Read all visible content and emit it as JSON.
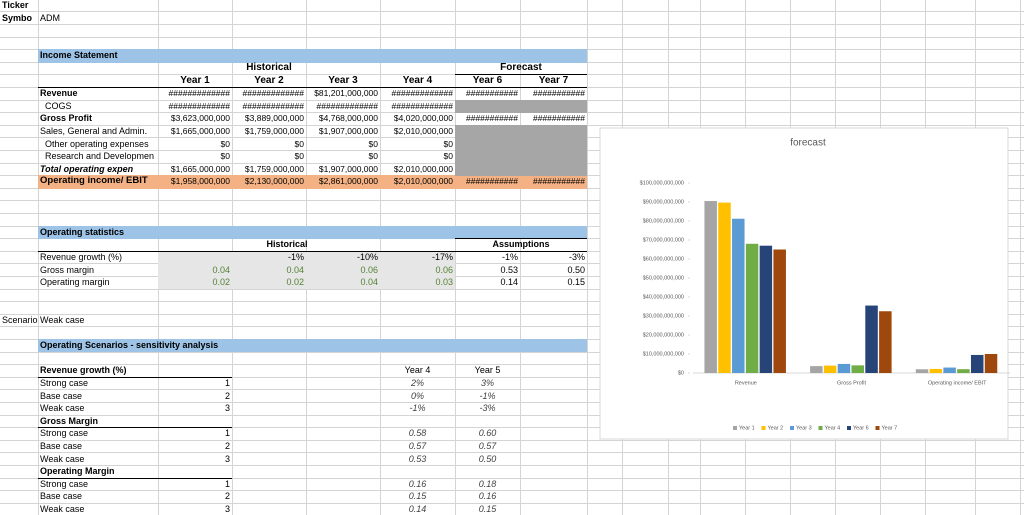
{
  "ticker": {
    "label": "Ticker",
    "symbol_label": "Symbo",
    "symbol": "ADM"
  },
  "income_statement": {
    "title": "Income Statement",
    "historical": "Historical",
    "forecast": "Forecast",
    "years": [
      "Year 1",
      "Year 2",
      "Year 3",
      "Year 4",
      "Year 6",
      "Year 7"
    ],
    "rows": [
      {
        "label": "Revenue",
        "values": [
          "#############",
          "#############",
          "$81,201,000,000",
          "#############",
          "###########",
          "###########"
        ]
      },
      {
        "label": "COGS",
        "values": [
          "#############",
          "#############",
          "#############",
          "#############"
        ]
      },
      {
        "label": "Gross Profit",
        "values": [
          "$3,623,000,000",
          "$3,889,000,000",
          "$4,768,000,000",
          "$4,020,000,000",
          "###########",
          "###########"
        ]
      },
      {
        "label": "Sales, General and Admin.",
        "values": [
          "$1,665,000,000",
          "$1,759,000,000",
          "$1,907,000,000",
          "$2,010,000,000"
        ]
      },
      {
        "label": "Other operating expenses",
        "values": [
          "$0",
          "$0",
          "$0",
          "$0"
        ]
      },
      {
        "label": "Research and Developmen",
        "values": [
          "$0",
          "$0",
          "$0",
          "$0"
        ]
      },
      {
        "label": "Total operating expen",
        "values": [
          "$1,665,000,000",
          "$1,759,000,000",
          "$1,907,000,000",
          "$2,010,000,000"
        ]
      },
      {
        "label": "Operating income/ EBIT",
        "values": [
          "$1,958,000,000",
          "$2,130,000,000",
          "$2,861,000,000",
          "$2,010,000,000",
          "###########",
          "###########"
        ]
      }
    ]
  },
  "operating_statistics": {
    "title": "Operating statistics",
    "historical": "Historical",
    "assumptions": "Assumptions",
    "rows": [
      {
        "label": "Revenue growth (%)",
        "values": [
          "-1%",
          "-10%",
          "-17%",
          "-1%",
          "-3%"
        ]
      },
      {
        "label": "Gross margin",
        "values": [
          "0.04",
          "0.04",
          "0.06",
          "0.06",
          "0.53",
          "0.50"
        ]
      },
      {
        "label": "Operating margin",
        "values": [
          "0.02",
          "0.02",
          "0.04",
          "0.03",
          "0.14",
          "0.15"
        ]
      }
    ]
  },
  "scenario": {
    "label": "Scenario",
    "value": "Weak case"
  },
  "scenarios": {
    "title": "Operating Scenarios - sensitivity analysis",
    "years": [
      "Year 4",
      "Year 5"
    ],
    "groups": [
      {
        "label": "Revenue growth (%)",
        "rows": [
          {
            "label": "Strong case",
            "id": 1,
            "values": [
              "2%",
              "3%"
            ]
          },
          {
            "label": "Base case",
            "id": 2,
            "values": [
              "0%",
              "-1%"
            ]
          },
          {
            "label": "Weak case",
            "id": 3,
            "values": [
              "-1%",
              "-3%"
            ]
          }
        ]
      },
      {
        "label": "Gross Margin",
        "rows": [
          {
            "label": "Strong case",
            "id": 1,
            "values": [
              "0.58",
              "0.60"
            ]
          },
          {
            "label": "Base case",
            "id": 2,
            "values": [
              "0.57",
              "0.57"
            ]
          },
          {
            "label": "Weak case",
            "id": 3,
            "values": [
              "0.53",
              "0.50"
            ]
          }
        ]
      },
      {
        "label": "Operating Margin",
        "rows": [
          {
            "label": "Strong case",
            "id": 1,
            "values": [
              "0.16",
              "0.18"
            ]
          },
          {
            "label": "Base case",
            "id": 2,
            "values": [
              "0.15",
              "0.16"
            ]
          },
          {
            "label": "Weak case",
            "id": 3,
            "values": [
              "0.14",
              "0.15"
            ]
          }
        ]
      }
    ]
  },
  "chart_data": {
    "type": "bar",
    "title": "forecast",
    "categories": [
      "Revenue",
      "Gross Profit",
      "Operating income/ EBIT"
    ],
    "series": [
      {
        "name": "Year 1",
        "color": "#a5a5a5",
        "values": [
          90500000000,
          3623000000,
          1958000000
        ]
      },
      {
        "name": "Year 2",
        "color": "#ffc000",
        "values": [
          89700000000,
          3889000000,
          2130000000
        ]
      },
      {
        "name": "Year 3",
        "color": "#5b9bd5",
        "values": [
          81201000000,
          4768000000,
          2861000000
        ]
      },
      {
        "name": "Year 4",
        "color": "#70ad47",
        "values": [
          68000000000,
          4020000000,
          2010000000
        ]
      },
      {
        "name": "Year 6",
        "color": "#264478",
        "values": [
          67000000000,
          35500000000,
          9500000000
        ]
      },
      {
        "name": "Year 7",
        "color": "#9e480e",
        "values": [
          65000000000,
          32500000000,
          10000000000
        ]
      }
    ],
    "ylim": [
      0,
      100000000000
    ],
    "yticks": [
      {
        "value": 0,
        "label": "$0"
      },
      {
        "value": 10000000000,
        "label": "$10,000,000,000"
      },
      {
        "value": 20000000000,
        "label": "$20,000,000,000"
      },
      {
        "value": 30000000000,
        "label": "$30,000,000,000"
      },
      {
        "value": 40000000000,
        "label": "$40,000,000,000"
      },
      {
        "value": 50000000000,
        "label": "$50,000,000,000"
      },
      {
        "value": 60000000000,
        "label": "$60,000,000,000"
      },
      {
        "value": 70000000000,
        "label": "$70,000,000,000"
      },
      {
        "value": 80000000000,
        "label": "$80,000,000,000"
      },
      {
        "value": 90000000000,
        "label": "$90,000,000,000"
      },
      {
        "value": 100000000000,
        "label": "$100,000,000,000"
      }
    ],
    "legend": "bottom"
  }
}
